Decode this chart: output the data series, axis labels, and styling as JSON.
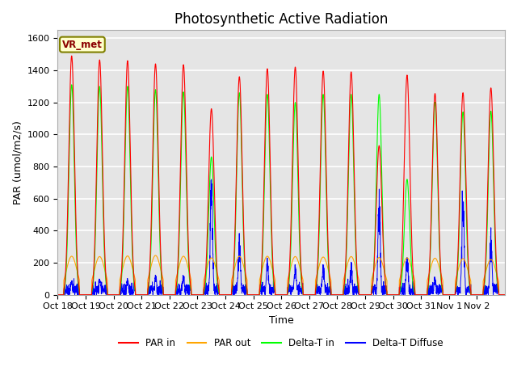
{
  "title": "Photosynthetic Active Radiation",
  "ylabel": "PAR (umol/m2/s)",
  "xlabel": "Time",
  "legend_label": "VR_met",
  "series": [
    "PAR in",
    "PAR out",
    "Delta-T in",
    "Delta-T Diffuse"
  ],
  "colors": [
    "red",
    "orange",
    "lime",
    "blue"
  ],
  "ylim": [
    0,
    1650
  ],
  "yticks": [
    0,
    200,
    400,
    600,
    800,
    1000,
    1200,
    1400,
    1600
  ],
  "xtick_labels": [
    "Oct 18",
    "Oct 19",
    "Oct 20",
    "Oct 21",
    "Oct 22",
    "Oct 23",
    "Oct 24",
    "Oct 25",
    "Oct 26",
    "Oct 27",
    "Oct 28",
    "Oct 29",
    "Oct 30",
    "Oct 31",
    "Nov 1",
    "Nov 2"
  ],
  "background_color": "#e5e5e5",
  "grid_color": "white",
  "title_fontsize": 12,
  "axis_fontsize": 9,
  "tick_fontsize": 8,
  "annotation_box_facecolor": "#ffffcc",
  "annotation_box_edgecolor": "#808000",
  "annotation_text_color": "#8b0000",
  "par_in_peaks": [
    1490,
    1465,
    1460,
    1440,
    1435,
    1160,
    1360,
    1410,
    1420,
    1395,
    1390,
    930,
    1370,
    1255,
    1260,
    1290
  ],
  "par_out_peaks": [
    240,
    238,
    242,
    245,
    240,
    230,
    240,
    240,
    238,
    235,
    238,
    232,
    230,
    228,
    225,
    220
  ],
  "delta_t_peaks": [
    1310,
    1300,
    1300,
    1280,
    1265,
    860,
    1260,
    1250,
    1200,
    1250,
    1250,
    1250,
    720,
    1200,
    1140,
    1145
  ],
  "delta_t_diff_peaks": [
    80,
    90,
    90,
    110,
    110,
    660,
    320,
    185,
    150,
    165,
    160,
    580,
    210,
    100,
    580,
    350
  ],
  "n_days": 16,
  "pts_per_day": 200
}
